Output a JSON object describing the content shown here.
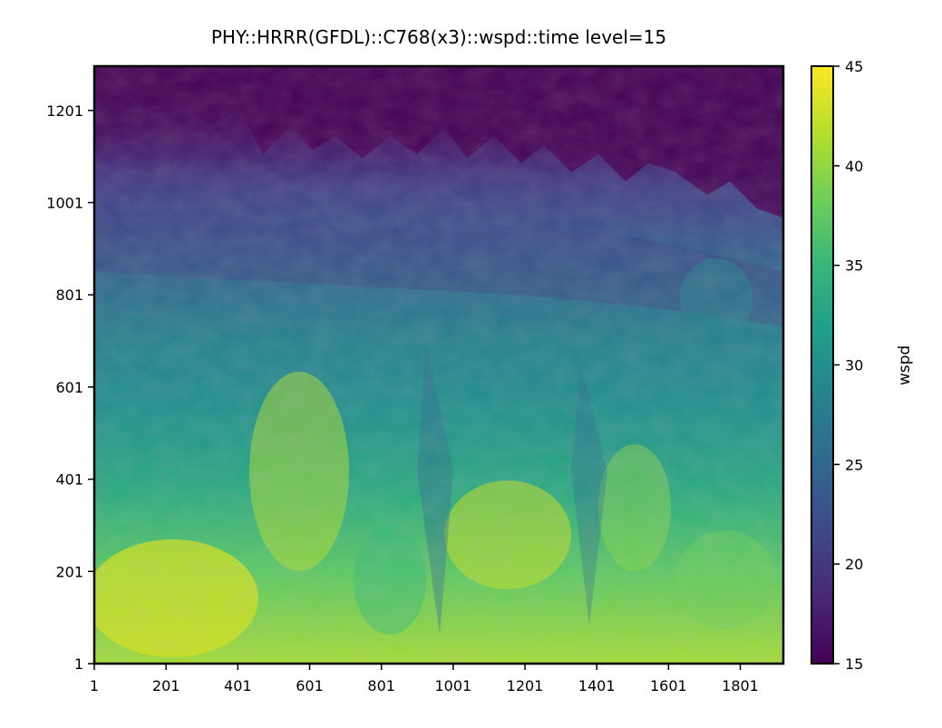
{
  "chart_data": {
    "type": "heatmap",
    "title": "PHY::HRRR(GFDL)::C768(x3)::wspd::time level=15",
    "x_ticks": [
      "1",
      "201",
      "401",
      "601",
      "801",
      "1001",
      "1201",
      "1401",
      "1601",
      "1801"
    ],
    "y_ticks": [
      "1",
      "201",
      "401",
      "601",
      "801",
      "1001",
      "1201"
    ],
    "xlim": [
      1,
      1921
    ],
    "ylim": [
      1,
      1297
    ],
    "colorbar": {
      "label": "wspd",
      "ticks": [
        "15",
        "20",
        "25",
        "30",
        "35",
        "40",
        "45"
      ],
      "range": [
        15,
        45
      ],
      "colormap": "viridis"
    },
    "field_description_values": {
      "top_region_min": 15,
      "mid_region_typical": 28,
      "bottom_region_max": 45
    }
  },
  "colors": {
    "viridis": [
      "#440154",
      "#482878",
      "#3e4989",
      "#31688e",
      "#26828e",
      "#1f9e89",
      "#35b779",
      "#6ece58",
      "#b5de2b",
      "#fde725"
    ]
  }
}
